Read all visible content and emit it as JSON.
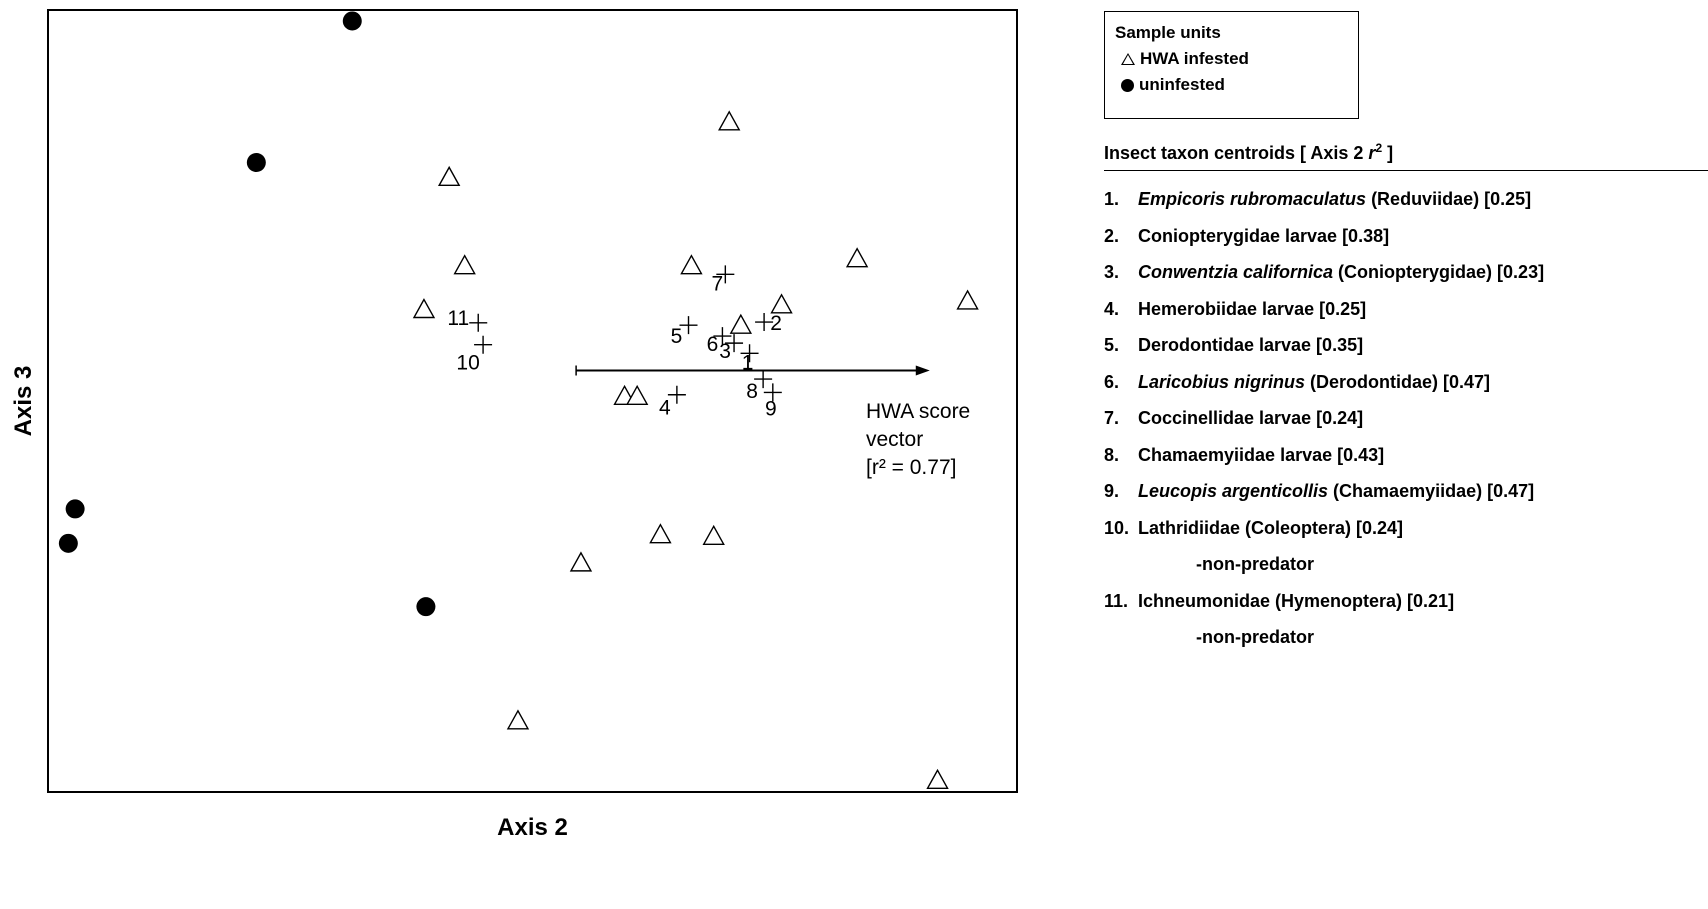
{
  "chart_data": {
    "type": "scatter",
    "xlabel": "Axis 2",
    "ylabel": "Axis 3",
    "xlim": [
      0,
      100
    ],
    "ylim": [
      0,
      100
    ],
    "grid": false,
    "legend_position": "top-right, outside plot",
    "series": [
      {
        "name": "HWA infested",
        "marker": "open-triangle",
        "points": [
          [
            70.3,
            85.7
          ],
          [
            41.4,
            78.6
          ],
          [
            43.0,
            67.3
          ],
          [
            38.8,
            61.7
          ],
          [
            66.4,
            67.3
          ],
          [
            83.5,
            68.2
          ],
          [
            94.9,
            62.8
          ],
          [
            75.7,
            62.3
          ],
          [
            71.5,
            59.7
          ],
          [
            59.5,
            50.6
          ],
          [
            60.8,
            50.6
          ],
          [
            63.2,
            32.9
          ],
          [
            68.7,
            32.7
          ],
          [
            55.0,
            29.3
          ],
          [
            48.5,
            9.1
          ],
          [
            91.8,
            1.5
          ]
        ]
      },
      {
        "name": "uninfested",
        "marker": "filled-circle",
        "points": [
          [
            31.4,
            98.6
          ],
          [
            21.5,
            80.5
          ],
          [
            2.8,
            36.2
          ],
          [
            2.1,
            31.8
          ],
          [
            39.0,
            23.7
          ]
        ]
      },
      {
        "name": "Insect taxon centroids",
        "marker": "plus",
        "points": [
          {
            "label": "1",
            "x": 72.4,
            "y": 56.1
          },
          {
            "label": "2",
            "x": 73.9,
            "y": 60.1
          },
          {
            "label": "3",
            "x": 70.8,
            "y": 57.4
          },
          {
            "label": "4",
            "x": 64.9,
            "y": 50.8
          },
          {
            "label": "5",
            "x": 66.1,
            "y": 59.7
          },
          {
            "label": "6",
            "x": 69.6,
            "y": 58.3
          },
          {
            "label": "7",
            "x": 69.9,
            "y": 66.2
          },
          {
            "label": "8",
            "x": 73.8,
            "y": 52.8
          },
          {
            "label": "9",
            "x": 74.8,
            "y": 51.1
          },
          {
            "label": "10",
            "x": 44.9,
            "y": 57.2
          },
          {
            "label": "11",
            "x": 44.4,
            "y": 60.0
          }
        ]
      }
    ],
    "vector": {
      "name": "HWA score vector",
      "from": [
        54.5,
        53.9
      ],
      "to": [
        91.0,
        53.9
      ],
      "label_lines": [
        "HWA score",
        "vector",
        "[r² = 0.77]"
      ]
    }
  },
  "legend": {
    "title": "Sample units",
    "items": [
      {
        "label": "HWA infested",
        "symbol": "open-triangle"
      },
      {
        "label": "uninfested",
        "symbol": "filled-circle"
      }
    ]
  },
  "taxa": {
    "heading_pre": "Insect taxon centroids [ Axis 2 ",
    "heading_r": "r",
    "heading_sup": "2",
    "heading_post": " ]",
    "items": [
      {
        "num": "1.",
        "italic": "Empicoris rubromaculatus",
        "rest": " (Reduviidae) [0.25]"
      },
      {
        "num": "2.",
        "italic": "",
        "rest": "Coniopterygidae larvae [0.38]"
      },
      {
        "num": "3.",
        "italic": "Conwentzia californica",
        "rest": " (Coniopterygidae) [0.23]"
      },
      {
        "num": "4.",
        "italic": "",
        "rest": "Hemerobiidae larvae [0.25]"
      },
      {
        "num": "5.",
        "italic": "",
        "rest": "Derodontidae larvae [0.35]"
      },
      {
        "num": "6.",
        "italic": "Laricobius nigrinus",
        "rest": " (Derodontidae) [0.47]"
      },
      {
        "num": "7.",
        "italic": "",
        "rest": "Coccinellidae larvae [0.24]"
      },
      {
        "num": "8.",
        "italic": "",
        "rest": "Chamaemyiidae larvae [0.43]"
      },
      {
        "num": "9.",
        "italic": "Leucopis argenticollis",
        "rest": " (Chamaemyiidae) [0.47]"
      },
      {
        "num": "10.",
        "italic": "",
        "rest": "Lathridiidae (Coleoptera) [0.24]",
        "sub": "-non-predator"
      },
      {
        "num": "11.",
        "italic": "",
        "rest": "Ichneumonidae (Hymenoptera) [0.21]",
        "sub": "-non-predator"
      }
    ]
  }
}
